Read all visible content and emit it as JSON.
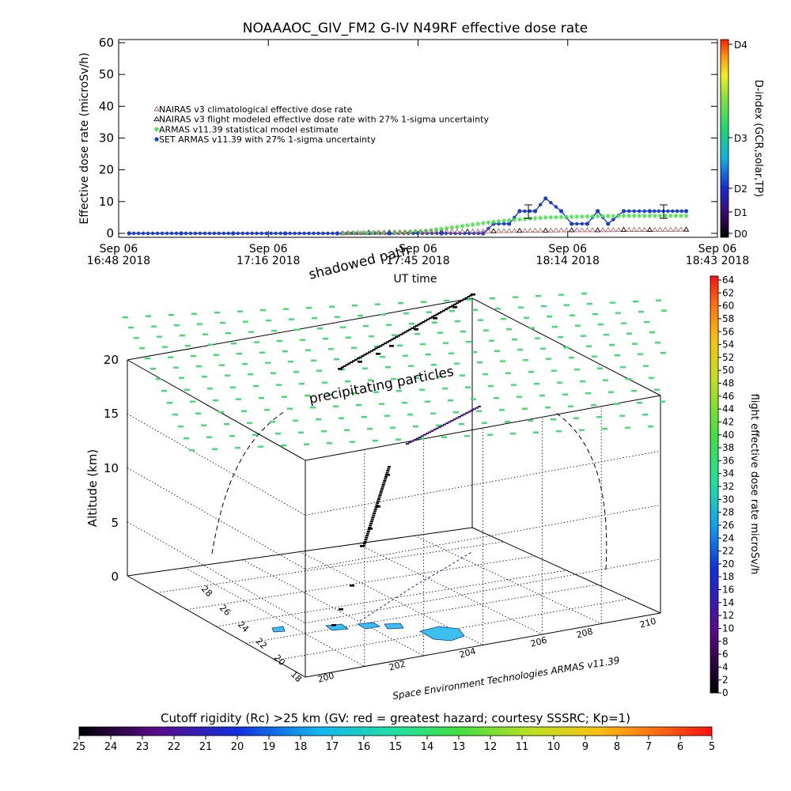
{
  "title": "NOAAAOC_GIV_FM2 G-IV    N49RF  effective dose rate",
  "top_panel": {
    "ylabel": "Effective dose rate (microSv/h)",
    "right_axis_label": "D-index (GCR,solar,TP)",
    "right_axis_ticks": [
      "D4",
      "D3",
      "D2",
      "D1",
      "D0"
    ],
    "xlabel": "UT time",
    "x_ticks": [
      {
        "date": "Sep 06",
        "time": "16:48 2018"
      },
      {
        "date": "Sep 06",
        "time": "17:16 2018"
      },
      {
        "date": "Sep 06",
        "time": "17:45 2018"
      },
      {
        "date": "Sep 06",
        "time": "18:14 2018"
      },
      {
        "date": "Sep 06",
        "time": "18:43 2018"
      }
    ],
    "y_ticks": [
      "0",
      "10",
      "20",
      "30",
      "40",
      "50",
      "60"
    ],
    "legend": [
      "NAIRAS v3 climatological effective dose rate",
      "NAIRAS v3 flight modeled effective dose rate with 27% 1-sigma uncertainty",
      "ARMAS v11.39 statistical model estimate",
      "SET ARMAS v11.39 with 27% 1-sigma uncertainty"
    ],
    "colors": {
      "nairas_clim": "#b05a5a",
      "nairas_flight": "#000000",
      "armas_model": "#4ee04e",
      "set_armas": "#1a3fd0"
    }
  },
  "chart_data": [
    {
      "type": "line",
      "title": "NOAAAOC_GIV_FM2 G-IV    N49RF  effective dose rate",
      "xlabel": "UT time",
      "ylabel": "Effective dose rate (microSv/h)",
      "ylim": [
        0,
        60
      ],
      "xlim": [
        "2018-09-06 16:48",
        "2018-09-06 18:43"
      ],
      "grid": false,
      "legend_position": "upper-left",
      "series": [
        {
          "name": "NAIRAS v3 climatological effective dose rate",
          "x": [
            "16:50",
            "17:00",
            "17:10",
            "17:20",
            "17:30",
            "17:36",
            "17:40",
            "17:45",
            "17:50",
            "17:55",
            "18:00",
            "18:05",
            "18:10",
            "18:15",
            "18:20",
            "18:25",
            "18:30",
            "18:37"
          ],
          "values": [
            0,
            0,
            0,
            0,
            0,
            0.2,
            0.3,
            0.4,
            0.5,
            0.6,
            0.7,
            0.8,
            0.9,
            1.0,
            1.0,
            1.1,
            1.1,
            1.2
          ]
        },
        {
          "name": "NAIRAS v3 flight modeled effective dose rate with 27% 1-sigma uncertainty",
          "x": [
            "16:50",
            "17:00",
            "17:10",
            "17:20",
            "17:30",
            "17:36",
            "17:40",
            "17:45",
            "17:50",
            "17:55",
            "18:00",
            "18:05",
            "18:10",
            "18:15",
            "18:20",
            "18:25",
            "18:30",
            "18:37"
          ],
          "values": [
            0,
            0,
            0,
            0,
            0,
            0.2,
            0.3,
            0.4,
            0.5,
            0.6,
            0.7,
            0.8,
            0.9,
            1.0,
            1.0,
            1.1,
            1.1,
            1.2
          ]
        },
        {
          "name": "ARMAS v11.39 statistical model estimate",
          "x": [
            "16:50",
            "17:00",
            "17:10",
            "17:20",
            "17:30",
            "17:40",
            "17:45",
            "17:48",
            "17:52",
            "17:55",
            "17:58",
            "18:02",
            "18:06",
            "18:10",
            "18:15",
            "18:20",
            "18:25",
            "18:30",
            "18:37"
          ],
          "values": [
            0,
            0,
            0,
            0,
            0,
            0.2,
            0.5,
            1.0,
            1.8,
            2.5,
            3.2,
            4.0,
            4.5,
            5.0,
            5.2,
            5.4,
            5.5,
            5.5,
            5.5
          ]
        },
        {
          "name": "SET ARMAS v11.39 with 27% 1-sigma uncertainty",
          "x": [
            "16:50",
            "17:00",
            "17:10",
            "17:20",
            "17:30",
            "17:40",
            "17:50",
            "17:58",
            "18:00",
            "18:03",
            "18:05",
            "18:08",
            "18:10",
            "18:13",
            "18:15",
            "18:18",
            "18:20",
            "18:22",
            "18:25",
            "18:30",
            "18:37"
          ],
          "values": [
            0,
            0,
            0,
            0,
            0,
            0,
            0,
            0,
            3,
            3,
            7,
            7,
            11,
            7,
            3,
            3,
            7,
            3,
            7,
            7,
            7
          ]
        }
      ]
    },
    {
      "type": "scatter",
      "title": "",
      "xlabel": "",
      "ylabel": "Altitude (km)",
      "zlabel": "",
      "z_ticks": [
        "0",
        "5",
        "10",
        "15",
        "20"
      ],
      "lat_ticks": [
        "18",
        "20",
        "22",
        "24",
        "26",
        "28"
      ],
      "lon_ticks": [
        "200",
        "202",
        "204",
        "206",
        "208",
        "210"
      ],
      "annotations": [
        "shadowed path",
        "precipitating particles",
        "Space Environment Technologies ARMAS v11.39"
      ],
      "colorbar": {
        "label": "flight effective dose rate microSv/h",
        "ticks": [
          "0",
          "2",
          "4",
          "6",
          "8",
          "10",
          "12",
          "14",
          "16",
          "18",
          "20",
          "22",
          "24",
          "26",
          "28",
          "30",
          "32",
          "34",
          "36",
          "38",
          "40",
          "42",
          "44",
          "46",
          "48",
          "50",
          "52",
          "54",
          "56",
          "58",
          "60",
          "62",
          "64"
        ]
      },
      "flight_track_altitude_km": [
        2,
        4,
        6,
        8,
        10,
        12,
        14,
        16,
        18,
        20,
        21,
        22
      ]
    }
  ],
  "bottom_colorbar": {
    "label": "Cutoff rigidity (Rc) >25 km (GV: red = greatest hazard; courtesy SSSRC; Kp=1)",
    "ticks": [
      "25",
      "24",
      "23",
      "22",
      "21",
      "20",
      "19",
      "18",
      "17",
      "16",
      "15",
      "14",
      "13",
      "12",
      "11",
      "10",
      "9",
      "8",
      "7",
      "6",
      "5"
    ]
  }
}
